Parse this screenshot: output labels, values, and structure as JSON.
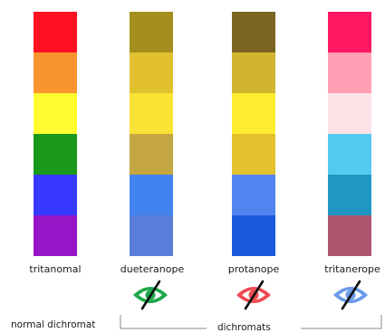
{
  "columns": [
    {
      "label": "tritanomal",
      "swatches": [
        "#fe1221",
        "#f9952d",
        "#fefc2e",
        "#1a981a",
        "#3739fe",
        "#9616c7"
      ]
    },
    {
      "label": "dueteranope",
      "swatches": [
        "#a48e1e",
        "#e1c22e",
        "#fbe335",
        "#c4a740",
        "#4383f0",
        "#597fda"
      ],
      "eye": {
        "icon": "eye-crossed-icon",
        "color": "#1fa84a"
      }
    },
    {
      "label": "protanope",
      "swatches": [
        "#7c6522",
        "#d2b52f",
        "#feec2f",
        "#e3c22e",
        "#5284f2",
        "#1b5adf"
      ],
      "eye": {
        "icon": "eye-crossed-icon",
        "color": "#f04a52"
      }
    },
    {
      "label": "tritanerope",
      "swatches": [
        "#fe1761",
        "#fe9fb3",
        "#fde1e7",
        "#54c9f2",
        "#1e97c3",
        "#ad556e"
      ],
      "eye": {
        "icon": "eye-crossed-icon",
        "color": "#6b9ae9"
      }
    }
  ],
  "footer": {
    "left_label": "normal dichromat",
    "group_label": "dichromats"
  }
}
